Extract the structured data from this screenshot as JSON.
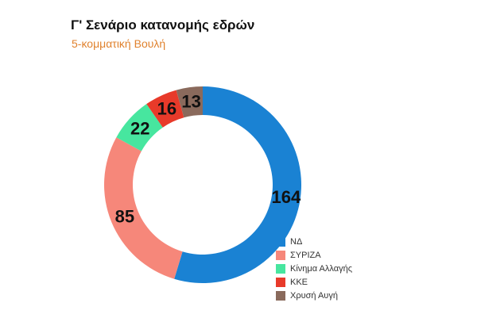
{
  "header": {
    "title": "Γ' Σενάριο κατανομής εδρών",
    "subtitle": "5-κομματική Βουλή"
  },
  "chart_data": {
    "type": "pie",
    "variant": "donut",
    "title": "Γ' Σενάριο κατανομής εδρών",
    "subtitle": "5-κομματική Βουλή",
    "categories": [
      "ΝΔ",
      "ΣΥΡΙΖΑ",
      "Κίνημα Αλλαγής",
      "ΚΚΕ",
      "Χρυσή Αυγή"
    ],
    "values": [
      164,
      85,
      22,
      16,
      13
    ],
    "colors": [
      "#1a82d3",
      "#f6877a",
      "#47e69f",
      "#e83a2a",
      "#8a6a5c"
    ],
    "legend_position": "bottom-right"
  }
}
